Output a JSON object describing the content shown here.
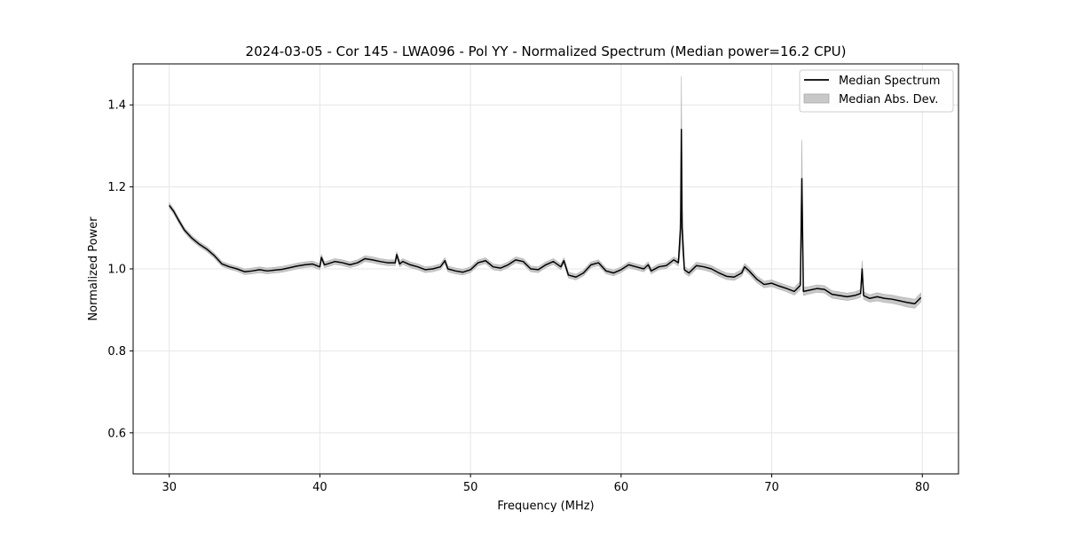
{
  "chart_data": {
    "type": "line",
    "title": "2024-03-05 - Cor 145 - LWA096 - Pol YY - Normalized Spectrum (Median power=16.2 CPU)",
    "xlabel": "Frequency (MHz)",
    "ylabel": "Normalized Power",
    "xlim": [
      27.6,
      82.4
    ],
    "ylim": [
      0.5,
      1.5
    ],
    "xticks": [
      30,
      40,
      50,
      60,
      70,
      80
    ],
    "yticks": [
      0.6,
      0.8,
      1.0,
      1.2,
      1.4
    ],
    "xtick_labels": [
      "30",
      "40",
      "50",
      "60",
      "70",
      "80"
    ],
    "ytick_labels": [
      "0.6",
      "0.8",
      "1.0",
      "1.2",
      "1.4"
    ],
    "grid": true,
    "legend_position": "top-right",
    "legend": {
      "median_label": "Median Spectrum",
      "mad_label": "Median Abs. Dev."
    },
    "colors": {
      "line": "#000000",
      "band": "#c8c8c8",
      "grid": "#e6e6e6"
    },
    "series": [
      {
        "name": "Median Spectrum",
        "x": [
          30.0,
          30.3,
          30.6,
          31.0,
          31.5,
          32.0,
          32.5,
          33.0,
          33.5,
          34.0,
          34.5,
          35.0,
          35.5,
          36.0,
          36.5,
          37.0,
          37.5,
          38.0,
          38.5,
          39.0,
          39.5,
          40.0,
          40.1,
          40.3,
          40.5,
          41.0,
          41.5,
          42.0,
          42.5,
          43.0,
          43.5,
          44.0,
          44.5,
          45.0,
          45.1,
          45.3,
          45.5,
          46.0,
          46.5,
          47.0,
          47.5,
          48.0,
          48.3,
          48.5,
          49.0,
          49.5,
          50.0,
          50.5,
          51.0,
          51.5,
          52.0,
          52.5,
          53.0,
          53.5,
          54.0,
          54.5,
          55.0,
          55.5,
          56.0,
          56.2,
          56.5,
          57.0,
          57.5,
          58.0,
          58.5,
          59.0,
          59.5,
          60.0,
          60.5,
          61.0,
          61.5,
          61.8,
          62.0,
          62.5,
          63.0,
          63.5,
          63.8,
          63.95,
          64.0,
          64.05,
          64.2,
          64.5,
          65.0,
          65.5,
          66.0,
          66.5,
          67.0,
          67.5,
          68.0,
          68.2,
          68.5,
          69.0,
          69.5,
          70.0,
          70.5,
          71.0,
          71.5,
          71.9,
          72.0,
          72.1,
          72.5,
          73.0,
          73.5,
          74.0,
          74.5,
          75.0,
          75.5,
          75.9,
          76.0,
          76.1,
          76.5,
          77.0,
          77.5,
          78.0,
          78.5,
          79.0,
          79.5,
          79.9
        ],
        "y": [
          1.155,
          1.14,
          1.12,
          1.095,
          1.075,
          1.06,
          1.048,
          1.032,
          1.012,
          1.005,
          1.0,
          0.993,
          0.995,
          0.998,
          0.995,
          0.997,
          0.999,
          1.003,
          1.007,
          1.01,
          1.012,
          1.005,
          1.028,
          1.01,
          1.012,
          1.018,
          1.015,
          1.01,
          1.015,
          1.025,
          1.022,
          1.018,
          1.015,
          1.015,
          1.035,
          1.012,
          1.018,
          1.01,
          1.005,
          0.998,
          1.0,
          1.005,
          1.02,
          1.0,
          0.995,
          0.992,
          0.998,
          1.015,
          1.02,
          1.005,
          1.002,
          1.01,
          1.022,
          1.018,
          1.0,
          0.998,
          1.01,
          1.018,
          1.005,
          1.02,
          0.985,
          0.98,
          0.99,
          1.01,
          1.015,
          0.995,
          0.99,
          0.998,
          1.01,
          1.005,
          1.0,
          1.01,
          0.995,
          1.005,
          1.008,
          1.022,
          1.015,
          1.1,
          1.34,
          1.1,
          0.998,
          0.99,
          1.008,
          1.005,
          1.0,
          0.99,
          0.982,
          0.98,
          0.99,
          1.005,
          0.995,
          0.975,
          0.962,
          0.965,
          0.958,
          0.952,
          0.945,
          0.96,
          1.22,
          0.945,
          0.948,
          0.952,
          0.95,
          0.938,
          0.935,
          0.932,
          0.935,
          0.94,
          1.0,
          0.935,
          0.928,
          0.932,
          0.928,
          0.926,
          0.922,
          0.918,
          0.915,
          0.93
        ]
      },
      {
        "name": "Median Abs. Dev.",
        "x": [
          30.0,
          30.3,
          30.6,
          31.0,
          31.5,
          32.0,
          32.5,
          33.0,
          33.5,
          34.0,
          34.5,
          35.0,
          35.5,
          36.0,
          36.5,
          37.0,
          37.5,
          38.0,
          38.5,
          39.0,
          39.5,
          40.0,
          40.1,
          40.3,
          40.5,
          41.0,
          41.5,
          42.0,
          42.5,
          43.0,
          43.5,
          44.0,
          44.5,
          45.0,
          45.1,
          45.3,
          45.5,
          46.0,
          46.5,
          47.0,
          47.5,
          48.0,
          48.3,
          48.5,
          49.0,
          49.5,
          50.0,
          50.5,
          51.0,
          51.5,
          52.0,
          52.5,
          53.0,
          53.5,
          54.0,
          54.5,
          55.0,
          55.5,
          56.0,
          56.2,
          56.5,
          57.0,
          57.5,
          58.0,
          58.5,
          59.0,
          59.5,
          60.0,
          60.5,
          61.0,
          61.5,
          61.8,
          62.0,
          62.5,
          63.0,
          63.5,
          63.8,
          63.95,
          64.0,
          64.05,
          64.2,
          64.5,
          65.0,
          65.5,
          66.0,
          66.5,
          67.0,
          67.5,
          68.0,
          68.2,
          68.5,
          69.0,
          69.5,
          70.0,
          70.5,
          71.0,
          71.5,
          71.9,
          72.0,
          72.1,
          72.5,
          73.0,
          73.5,
          74.0,
          74.5,
          75.0,
          75.5,
          75.9,
          76.0,
          76.1,
          76.5,
          77.0,
          77.5,
          78.0,
          78.5,
          79.0,
          79.5,
          79.9
        ],
        "dev": [
          0.006,
          0.006,
          0.006,
          0.006,
          0.006,
          0.006,
          0.006,
          0.006,
          0.006,
          0.006,
          0.006,
          0.007,
          0.007,
          0.007,
          0.007,
          0.007,
          0.007,
          0.007,
          0.007,
          0.007,
          0.007,
          0.007,
          0.007,
          0.007,
          0.007,
          0.007,
          0.007,
          0.007,
          0.007,
          0.007,
          0.007,
          0.007,
          0.007,
          0.007,
          0.007,
          0.007,
          0.007,
          0.007,
          0.007,
          0.007,
          0.007,
          0.007,
          0.007,
          0.007,
          0.007,
          0.007,
          0.007,
          0.007,
          0.007,
          0.007,
          0.007,
          0.007,
          0.007,
          0.007,
          0.007,
          0.007,
          0.007,
          0.007,
          0.007,
          0.007,
          0.007,
          0.007,
          0.007,
          0.007,
          0.007,
          0.007,
          0.007,
          0.007,
          0.007,
          0.007,
          0.007,
          0.007,
          0.007,
          0.007,
          0.007,
          0.007,
          0.008,
          0.05,
          0.13,
          0.05,
          0.008,
          0.008,
          0.008,
          0.008,
          0.008,
          0.008,
          0.008,
          0.008,
          0.008,
          0.008,
          0.008,
          0.008,
          0.008,
          0.008,
          0.008,
          0.008,
          0.009,
          0.01,
          0.095,
          0.01,
          0.009,
          0.009,
          0.009,
          0.009,
          0.009,
          0.009,
          0.009,
          0.009,
          0.02,
          0.009,
          0.009,
          0.01,
          0.01,
          0.01,
          0.01,
          0.011,
          0.011,
          0.011
        ]
      }
    ]
  }
}
